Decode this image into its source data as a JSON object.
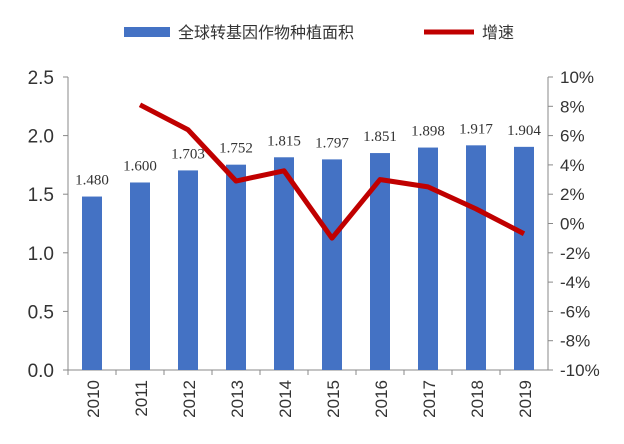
{
  "chart_data": {
    "type": "bar+line",
    "categories": [
      "2010",
      "2011",
      "2012",
      "2013",
      "2014",
      "2015",
      "2016",
      "2017",
      "2018",
      "2019"
    ],
    "series": [
      {
        "name": "全球转基因作物种植面积",
        "type": "bar",
        "axis": "left",
        "color": "#4472c4",
        "values": [
          1.48,
          1.6,
          1.703,
          1.752,
          1.815,
          1.797,
          1.851,
          1.898,
          1.917,
          1.904
        ],
        "labels": [
          "1.480",
          "1.600",
          "1.703",
          "1.752",
          "1.815",
          "1.797",
          "1.851",
          "1.898",
          "1.917",
          "1.904"
        ]
      },
      {
        "name": "增速",
        "type": "line",
        "axis": "right",
        "color": "#c00000",
        "values": [
          null,
          8.1,
          6.4,
          2.9,
          3.6,
          -1.0,
          3.0,
          2.5,
          1.0,
          -0.7
        ]
      }
    ],
    "ylim_left": [
      0,
      2.5
    ],
    "yticks_left": [
      "0.0",
      "0.5",
      "1.0",
      "1.5",
      "2.0",
      "2.5"
    ],
    "ylim_right": [
      -10,
      10
    ],
    "yticks_right": [
      "-10%",
      "-8%",
      "-6%",
      "-4%",
      "-2%",
      "0%",
      "2%",
      "4%",
      "6%",
      "8%",
      "10%"
    ],
    "legend": "top"
  }
}
